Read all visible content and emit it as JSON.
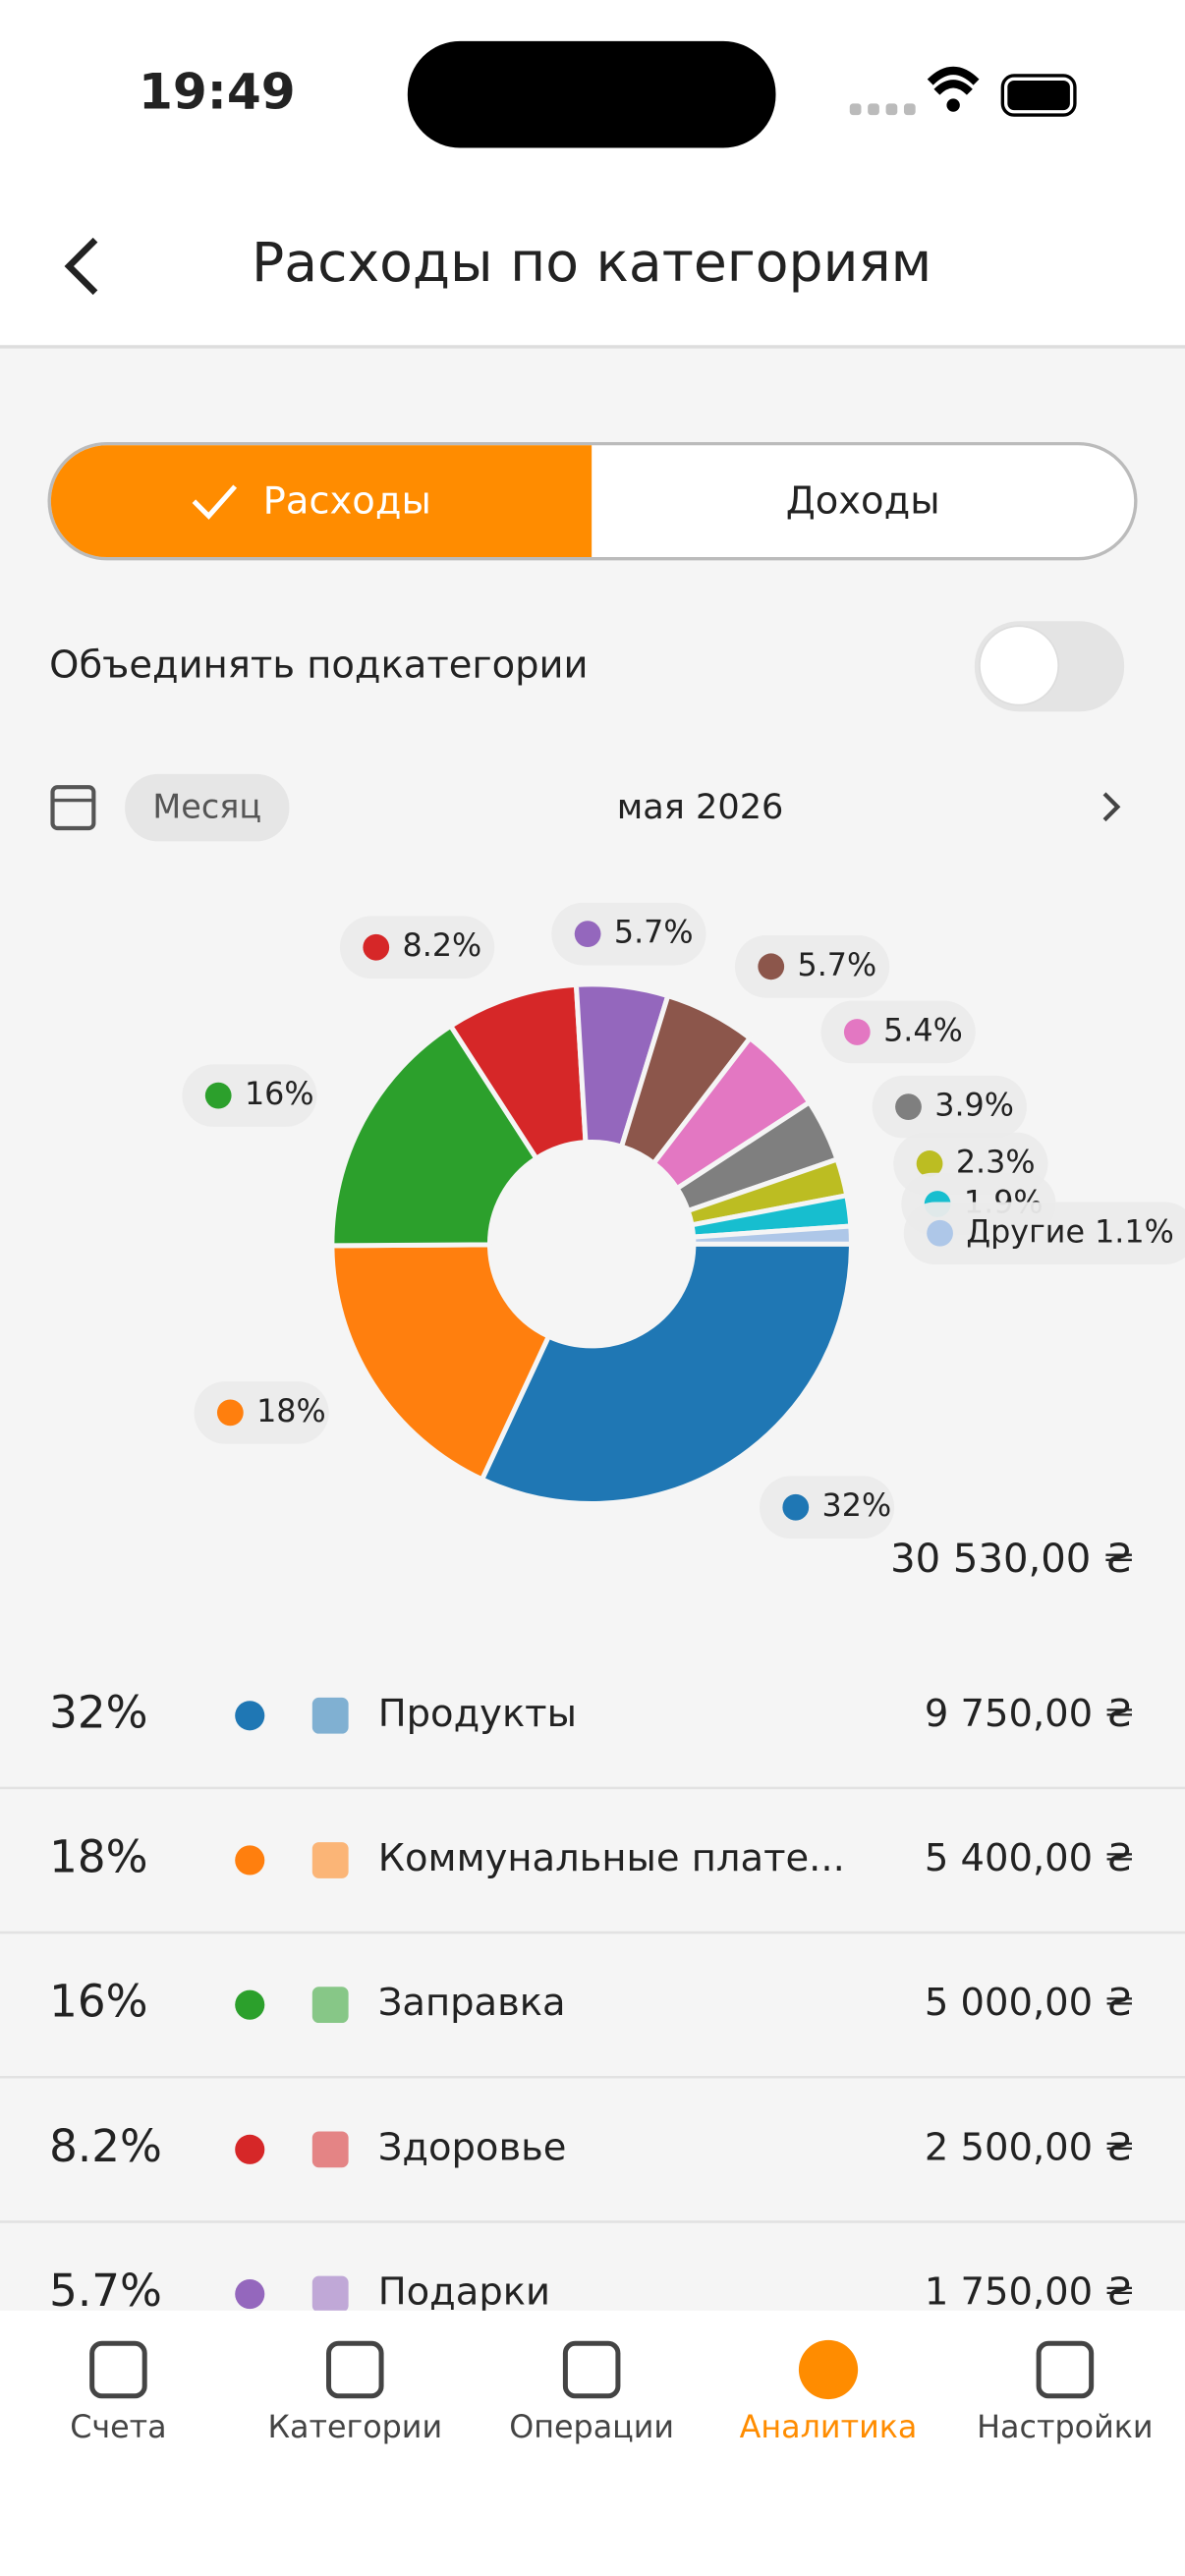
{
  "status": {
    "time": "19:49"
  },
  "header": {
    "title": "Расходы по категориям"
  },
  "tabs": [
    "Расходы",
    "Доходы"
  ],
  "toggle": {
    "label": "Объединять подкатегории"
  },
  "period": {
    "chip": "Месяц",
    "label": "мая 2026"
  },
  "chart_data": {
    "type": "pie",
    "values": [
      32,
      18,
      16,
      8.2,
      5.7,
      5.7,
      5.4,
      3.9,
      2.3,
      1.9,
      1.1
    ],
    "value_labels": [
      "32%",
      "18%",
      "16%",
      "8.2%",
      "5.7%",
      "5.7%",
      "5.4%",
      "3.9%",
      "2.3%",
      "1.9%",
      "Другие 1.1%"
    ],
    "colors": [
      "#1f77b4",
      "#ff7f0e",
      "#2ca02c",
      "#d62728",
      "#9467bd",
      "#8c564b",
      "#e377c2",
      "#7f7f7f",
      "#bcbd22",
      "#17becf",
      "#aec7e8"
    ]
  },
  "total": "30 530,00 ₴",
  "list": [
    {
      "pct": "32%",
      "name": "Продукты",
      "amount": "9 750,00 ₴"
    },
    {
      "pct": "18%",
      "name": "Коммунальные плате...",
      "amount": "5 400,00 ₴"
    },
    {
      "pct": "16%",
      "name": "Заправка",
      "amount": "5 000,00 ₴"
    },
    {
      "pct": "8.2%",
      "name": "Здоровье",
      "amount": "2 500,00 ₴"
    },
    {
      "pct": "5.7%",
      "name": "Подарки",
      "amount": "1 750,00 ₴"
    }
  ],
  "nav": [
    "Счета",
    "Категории",
    "Операции",
    "Аналитика",
    "Настройки"
  ]
}
